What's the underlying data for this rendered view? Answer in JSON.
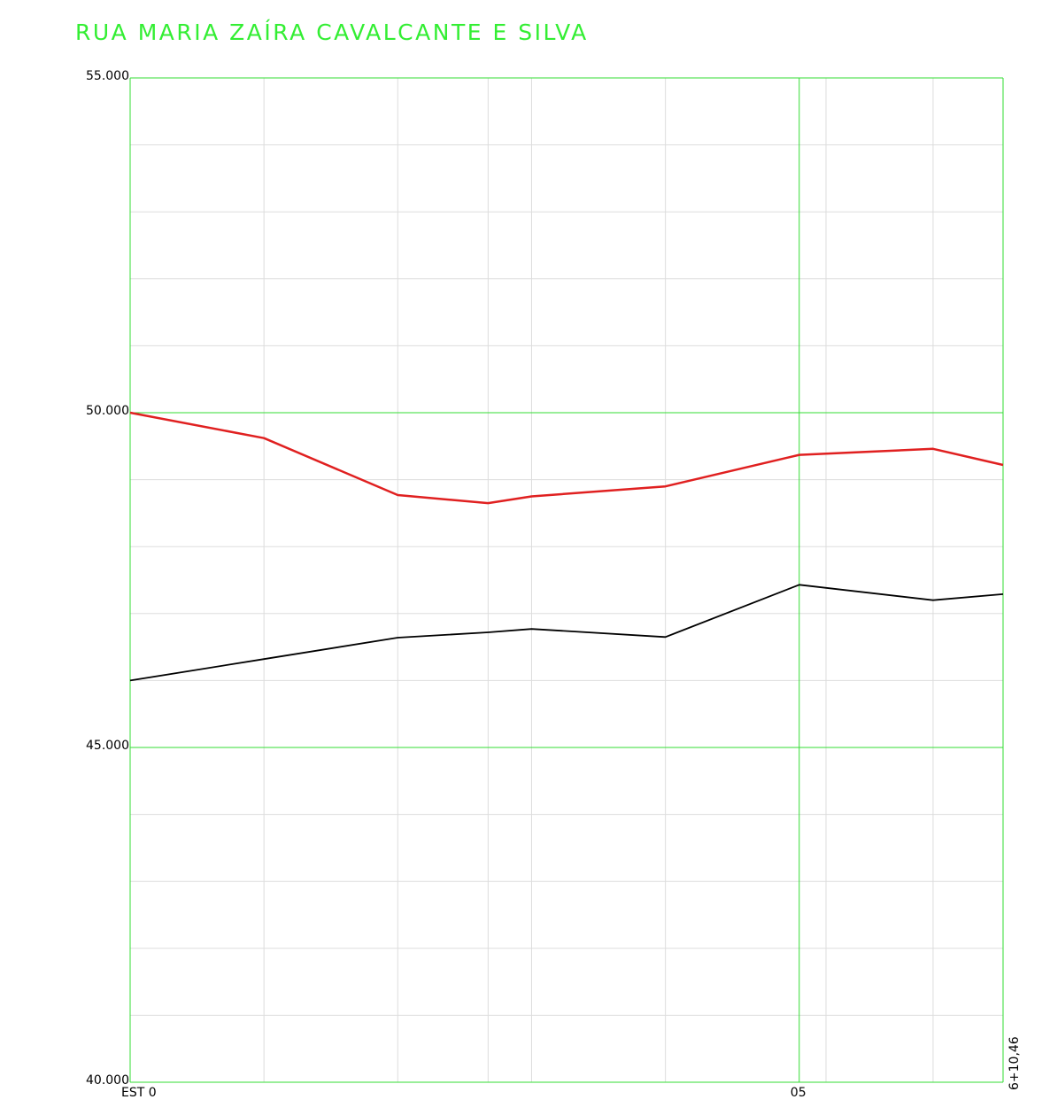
{
  "chart_data": {
    "type": "line",
    "title": "RUA MARIA ZAÍRA CAVALCANTE E SILVA",
    "ylim": [
      40,
      55
    ],
    "xlim": [
      0,
      130.46
    ],
    "yticks": [
      {
        "value": 40,
        "label": "40.000"
      },
      {
        "value": 45,
        "label": "45.000"
      },
      {
        "value": 50,
        "label": "50.000"
      },
      {
        "value": 55,
        "label": "55.000"
      }
    ],
    "xticks": [
      {
        "value": 0,
        "label": "EST 0"
      },
      {
        "value": 100,
        "label": "05"
      },
      {
        "value": 130.46,
        "label": "6+10,46"
      }
    ],
    "major_grid_y": [
      45,
      50,
      55
    ],
    "major_grid_x": [
      0,
      100,
      130.46
    ],
    "minor_grid_x": [
      20,
      40,
      53.5,
      60,
      80,
      104,
      120
    ],
    "minor_grid_y_step": 1,
    "colors": {
      "title": "#33ee33",
      "major_grid": "#33dd33",
      "minor_grid": "#dddddd",
      "series_red": "#e02020",
      "series_black": "#000000"
    },
    "series": [
      {
        "color": "#e02020",
        "x": [
          0,
          20,
          40,
          53.5,
          60,
          80,
          100,
          120,
          130.46
        ],
        "y": [
          50.0,
          49.62,
          48.77,
          48.65,
          48.75,
          48.9,
          49.37,
          49.46,
          49.22
        ]
      },
      {
        "color": "#000000",
        "x": [
          0,
          20,
          40,
          53.5,
          60,
          80,
          100,
          120,
          130.46
        ],
        "y": [
          46.0,
          46.32,
          46.64,
          46.72,
          46.77,
          46.65,
          47.43,
          47.2,
          47.29
        ]
      }
    ]
  }
}
